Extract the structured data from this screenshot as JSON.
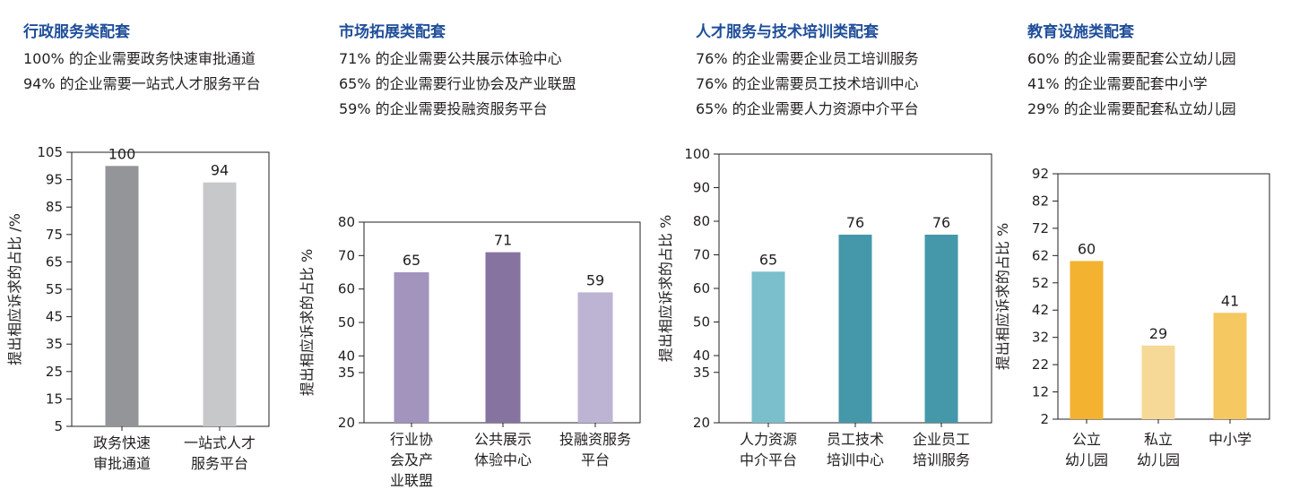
{
  "panels": [
    {
      "title": "行政服务类配套",
      "stats": [
        "100% 的企业需要政务快速审批通道",
        "94% 的企业需要一站式人才服务平台"
      ]
    },
    {
      "title": "市场拓展类配套",
      "stats": [
        "71% 的企业需要公共展示体验中心",
        "65% 的企业需要行业协会及产业联盟",
        "59% 的企业需要投融资服务平台"
      ]
    },
    {
      "title": "人才服务与技术培训类配套",
      "stats": [
        "76% 的企业需要企业员工培训服务",
        "76% 的企业需要员工技术培训中心",
        "65% 的企业需要人力资源中介平台"
      ]
    },
    {
      "title": "教育设施类配套",
      "stats": [
        "60% 的企业需要配套公立幼儿园",
        "41% 的企业需要配套中小学",
        "29% 的企业需要配套私立幼儿园"
      ]
    }
  ],
  "chart_data": [
    {
      "type": "bar",
      "ylabel": "提出相应诉求的占比 /%",
      "ylim": [
        5,
        105
      ],
      "yticks": [
        105,
        95,
        85,
        75,
        65,
        55,
        45,
        35,
        25,
        15,
        5
      ],
      "categories": [
        [
          "政务快速",
          "审批通道"
        ],
        [
          "一站式人才",
          "服务平台"
        ]
      ],
      "values": [
        100,
        94
      ],
      "colors": [
        "#939598",
        "#c7c8ca"
      ],
      "grid": false
    },
    {
      "type": "bar",
      "ylabel": "提出相应诉求的占比 %",
      "ylim": [
        20,
        80
      ],
      "yticks": [
        80,
        70,
        60,
        50,
        40,
        35,
        20
      ],
      "categories": [
        [
          "行业协",
          "会及产",
          "业联盟"
        ],
        [
          "公共展示",
          "体验中心"
        ],
        [
          "投融资服务",
          "平台"
        ]
      ],
      "values": [
        65,
        71,
        59
      ],
      "colors": [
        "#a294bd",
        "#86739f",
        "#bdb3d3"
      ],
      "grid": false
    },
    {
      "type": "bar",
      "ylabel": "提出相应诉求的占比 %",
      "ylim": [
        20,
        100
      ],
      "yticks": [
        100,
        90,
        80,
        70,
        60,
        50,
        40,
        35,
        20
      ],
      "categories": [
        [
          "人力资源",
          "中介平台"
        ],
        [
          "员工技术",
          "培训中心"
        ],
        [
          "企业员工",
          "培训服务"
        ]
      ],
      "values": [
        65,
        76,
        76
      ],
      "colors": [
        "#7bbfcd",
        "#4598aa",
        "#4598aa"
      ],
      "grid": false
    },
    {
      "type": "bar",
      "ylabel": "提出相应诉求的占比 %",
      "ylim": [
        2,
        92
      ],
      "yticks": [
        92,
        82,
        72,
        62,
        52,
        42,
        32,
        22,
        12,
        2
      ],
      "categories": [
        [
          "公立",
          "幼儿园"
        ],
        [
          "私立",
          "幼儿园"
        ],
        [
          "中小学"
        ]
      ],
      "values": [
        60,
        29,
        41
      ],
      "colors": [
        "#f3b22f",
        "#f6d996",
        "#f6c862"
      ],
      "grid": false
    }
  ]
}
